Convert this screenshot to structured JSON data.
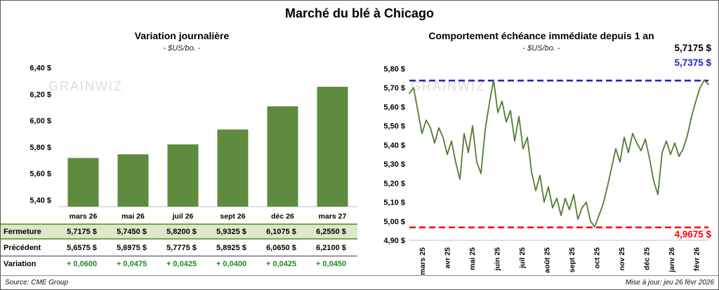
{
  "page": {
    "title": "Marché du blé à Chicago",
    "source": "Source: CME Group",
    "updated": "Mise à jour: jeu 26 févr 2026",
    "watermark": "grainwiz"
  },
  "colors": {
    "bar": "#5e8b3d",
    "line": "#507c33",
    "max_line": "#2121c8",
    "min_line": "#fe0000",
    "fermeture_bg": "#dce8c9",
    "fermeture_border": "#78a24a",
    "variation_text": "#1f8a1f",
    "watermark": "#dcdcdc"
  },
  "left_chart": {
    "title": "Variation journalière",
    "subtitle": "- $US/bo. -"
  },
  "right_chart": {
    "title": "Comportement échéance immédiate depuis 1 an",
    "subtitle": "- $US/bo. -",
    "current_label": "5,7175 $",
    "max_label": "5,7375 $",
    "min_label": "4,9675 $"
  },
  "table": {
    "rows": [
      {
        "label": "Fermeture",
        "values": [
          "5,7175 $",
          "5,7450 $",
          "5,8200 $",
          "5,9325 $",
          "6,1075 $",
          "6,2550 $"
        ]
      },
      {
        "label": "Précédent",
        "values": [
          "5,6575 $",
          "5,6975 $",
          "5,7775 $",
          "5,8925 $",
          "6,0650 $",
          "6,2100 $"
        ]
      },
      {
        "label": "Variation",
        "values": [
          "+ 0,0600",
          "+ 0,0475",
          "+ 0,0425",
          "+ 0,0400",
          "+ 0,0425",
          "+ 0,0450"
        ]
      }
    ]
  },
  "chart_data": [
    {
      "type": "bar",
      "title": "Variation journalière",
      "subtitle": "- $US/bo. -",
      "categories": [
        "mars 26",
        "mai 26",
        "juil 26",
        "sept 26",
        "déc 26",
        "mars 27"
      ],
      "values": [
        5.7175,
        5.745,
        5.82,
        5.9325,
        6.1075,
        6.255
      ],
      "ylim": [
        5.35,
        6.45
      ],
      "ytick_values": [
        5.4,
        5.6,
        5.8,
        6.0,
        6.2,
        6.4
      ],
      "ytick_labels": [
        "5,40 $",
        "5,60 $",
        "5,80 $",
        "6,00 $",
        "6,20 $",
        "6,40 $"
      ],
      "grid": false,
      "legend": false
    },
    {
      "type": "line",
      "title": "Comportement échéance immédiate depuis 1 an",
      "subtitle": "- $US/bo. -",
      "x_labels": [
        "mars 25",
        "avr 25",
        "mai 25",
        "juin 25",
        "juil 25",
        "août 25",
        "sept 25",
        "oct 25",
        "nov 25",
        "déc 25",
        "janv 26",
        "févr 26"
      ],
      "values": [
        5.67,
        5.7,
        5.58,
        5.46,
        5.53,
        5.49,
        5.41,
        5.49,
        5.44,
        5.35,
        5.42,
        5.31,
        5.22,
        5.46,
        5.36,
        5.5,
        5.31,
        5.25,
        5.48,
        5.62,
        5.74,
        5.57,
        5.63,
        5.52,
        5.58,
        5.42,
        5.55,
        5.38,
        5.44,
        5.26,
        5.16,
        5.24,
        5.1,
        5.18,
        5.07,
        5.12,
        5.03,
        5.12,
        5.06,
        5.14,
        5.01,
        5.07,
        5.1,
        5.0,
        4.97,
        5.03,
        5.09,
        5.18,
        5.28,
        5.38,
        5.31,
        5.44,
        5.36,
        5.46,
        5.41,
        5.37,
        5.43,
        5.33,
        5.21,
        5.14,
        5.36,
        5.42,
        5.35,
        5.41,
        5.34,
        5.38,
        5.45,
        5.55,
        5.63,
        5.7,
        5.74,
        5.7175
      ],
      "ylim": [
        4.9,
        5.8
      ],
      "ytick_values": [
        4.9,
        5.0,
        5.1,
        5.2,
        5.3,
        5.4,
        5.5,
        5.6,
        5.7,
        5.8
      ],
      "ytick_labels": [
        "4,90 $",
        "5,00 $",
        "5,10 $",
        "5,20 $",
        "5,30 $",
        "5,40 $",
        "5,50 $",
        "5,60 $",
        "5,70 $",
        "5,80 $"
      ],
      "max_line": 5.7375,
      "min_line": 4.9675,
      "last_value": 5.7175,
      "grid": false,
      "legend": false
    }
  ]
}
